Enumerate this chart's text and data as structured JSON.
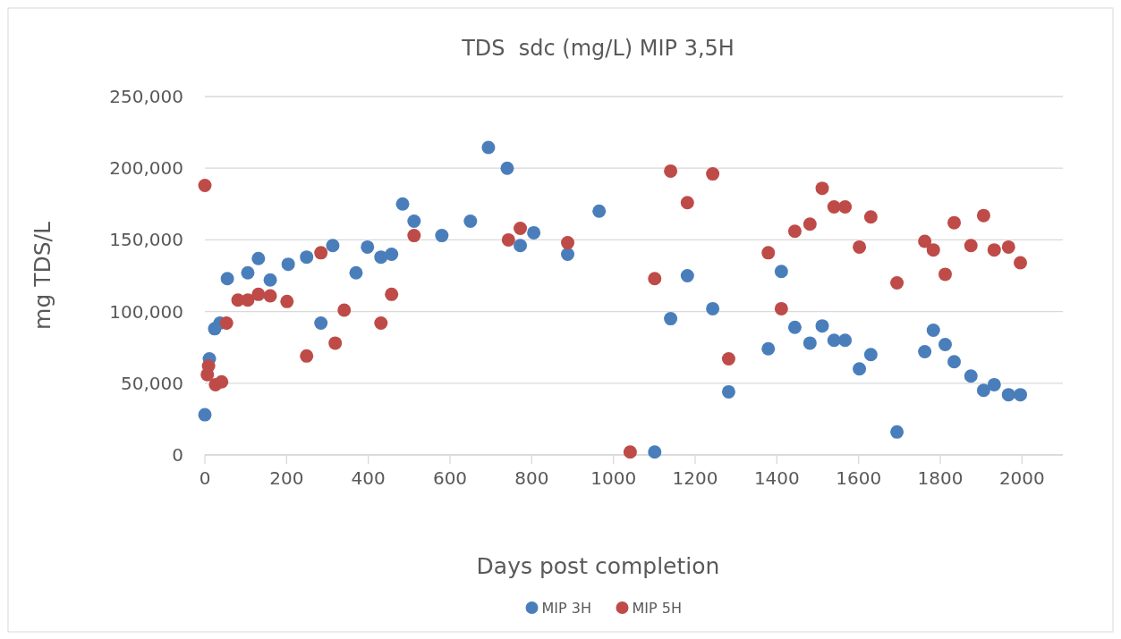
{
  "chart_data": {
    "type": "scatter",
    "title": "TDS  sdc (mg/L) MIP 3,5H",
    "xlabel": "Days post completion",
    "ylabel": "mg TDS/L",
    "xlim": [
      0,
      2100
    ],
    "xticks": [
      0,
      200,
      400,
      600,
      800,
      1000,
      1200,
      1400,
      1600,
      1800,
      2000
    ],
    "ylim": [
      0,
      250000
    ],
    "yticks": [
      0,
      {
        "value": 50000,
        "label": "50,000"
      },
      {
        "value": 100000,
        "label": "100,000"
      },
      {
        "value": 150000,
        "label": "150,000"
      },
      {
        "value": 200000,
        "label": "200,000"
      },
      {
        "value": 250000,
        "label": "250,000"
      }
    ],
    "grid": "y",
    "legend": "bottom",
    "marker": "circle",
    "series": [
      {
        "name": "MIP 3H",
        "color": "#4a7ebb",
        "x": [
          0,
          11,
          24,
          37,
          55,
          105,
          131,
          160,
          204,
          249,
          284,
          313,
          370,
          398,
          431,
          457,
          484,
          512,
          580,
          650,
          694,
          740,
          772,
          805,
          888,
          965,
          1101,
          1140,
          1181,
          1243,
          1282,
          1379,
          1411,
          1444,
          1481,
          1511,
          1540,
          1567,
          1602,
          1630,
          1694,
          1762,
          1783,
          1812,
          1834,
          1875,
          1906,
          1932,
          1967,
          1996
        ],
        "values": [
          28000,
          67000,
          88000,
          92000,
          123000,
          127000,
          137000,
          122000,
          133000,
          138000,
          92000,
          146000,
          127000,
          145000,
          138000,
          140000,
          175000,
          163000,
          153000,
          163000,
          214500,
          200000,
          146000,
          155000,
          140000,
          170000,
          2000,
          95000,
          125000,
          102000,
          44000,
          74000,
          128000,
          89000,
          78000,
          90000,
          80000,
          80000,
          60000,
          70000,
          16000,
          72000,
          87000,
          77000,
          65000,
          55000,
          45000,
          49000,
          42000,
          42000
        ]
      },
      {
        "name": "MIP 5H",
        "color": "#be4b48",
        "x": [
          0,
          6,
          9,
          26,
          41,
          53,
          81,
          105,
          131,
          160,
          201,
          249,
          284,
          319,
          341,
          431,
          457,
          512,
          743,
          772,
          888,
          1041,
          1101,
          1140,
          1181,
          1243,
          1282,
          1379,
          1411,
          1444,
          1481,
          1511,
          1540,
          1567,
          1602,
          1630,
          1694,
          1762,
          1783,
          1812,
          1834,
          1875,
          1906,
          1932,
          1967,
          1996
        ],
        "values": [
          188000,
          56000,
          62000,
          49000,
          51000,
          92000,
          108000,
          108000,
          112000,
          111000,
          107000,
          69000,
          141000,
          78000,
          101000,
          92000,
          112000,
          153000,
          150000,
          158000,
          148000,
          2000,
          123000,
          198000,
          176000,
          196000,
          67000,
          141000,
          102000,
          156000,
          161000,
          186000,
          173000,
          173000,
          145000,
          166000,
          120000,
          149000,
          143000,
          126000,
          162000,
          146000,
          167000,
          143000,
          145000,
          134000
        ]
      }
    ]
  }
}
